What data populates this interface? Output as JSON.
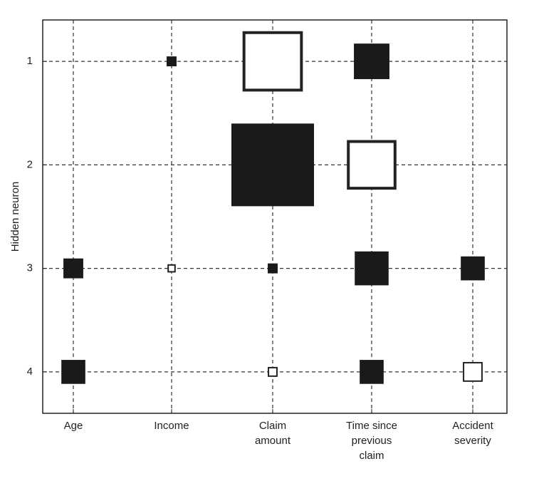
{
  "chart_data": {
    "type": "hinton",
    "ylabel": "Hidden neuron",
    "categories": [
      [
        "Age"
      ],
      [
        "Income"
      ],
      [
        "Claim",
        "amount"
      ],
      [
        "Time since",
        "previous",
        "claim"
      ],
      [
        "Accident",
        "severity"
      ]
    ],
    "ylim": [
      0.6,
      4.4
    ],
    "y_inverted": true,
    "yticks": [
      1,
      2,
      3,
      4
    ],
    "values": [
      [
        0,
        0.12,
        -0.73,
        0.43,
        0
      ],
      [
        0,
        0,
        1.0,
        -0.6,
        0
      ],
      [
        0.24,
        -0.1,
        0.12,
        0.41,
        0.29
      ],
      [
        0.29,
        0,
        -0.12,
        0.29,
        -0.24
      ]
    ],
    "positive_color": "#1a1a1a",
    "negative_color": "#ffffff",
    "grid": true
  }
}
